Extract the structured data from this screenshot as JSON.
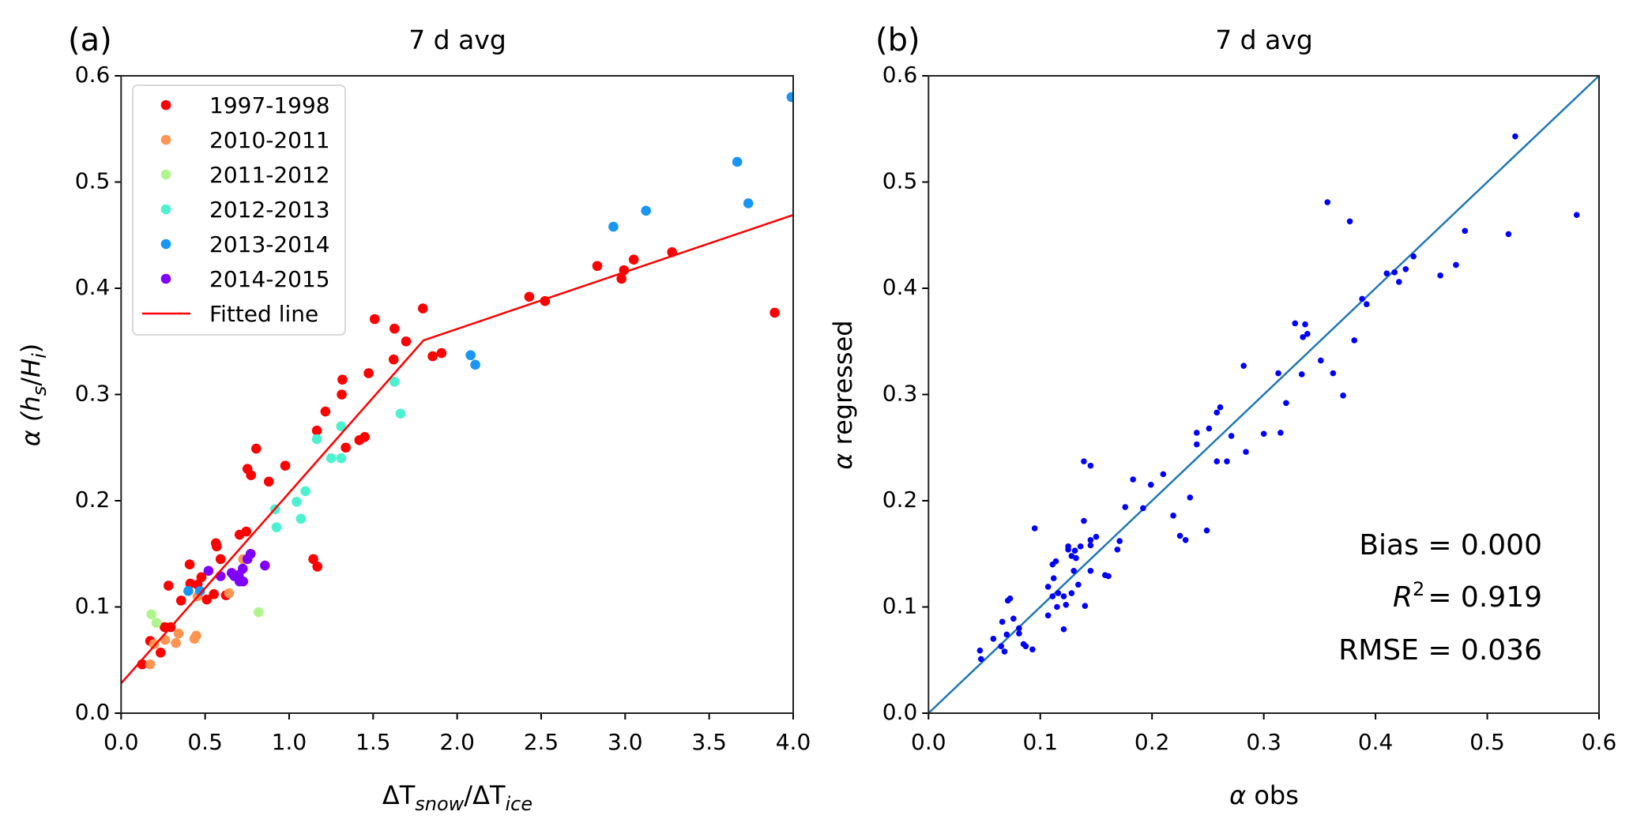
{
  "chart_data": [
    {
      "type": "scatter",
      "panel_label": "(a)",
      "title": "7 d avg",
      "xlabel_parts": [
        "ΔT",
        "snow",
        "/ΔT",
        "ice"
      ],
      "ylabel_parts": [
        "α (",
        "h",
        "s",
        "/",
        "H",
        "i",
        ")"
      ],
      "xlim": [
        0,
        4.0
      ],
      "ylim": [
        0,
        0.6
      ],
      "xticks": [
        "0.0",
        "0.5",
        "1.0",
        "1.5",
        "2.0",
        "2.5",
        "3.0",
        "3.5",
        "4.0"
      ],
      "yticks": [
        "0.0",
        "0.1",
        "0.2",
        "0.3",
        "0.4",
        "0.5",
        "0.6"
      ],
      "grid": false,
      "legend_position": "upper-left",
      "series": [
        {
          "name": "1997-1998",
          "color": "#ff0000",
          "points": [
            [
              0.804,
              0.249
            ],
            [
              0.752,
              0.23
            ],
            [
              0.773,
              0.224
            ],
            [
              0.977,
              0.233
            ],
            [
              0.879,
              0.218
            ],
            [
              0.705,
              0.168
            ],
            [
              0.745,
              0.171
            ],
            [
              0.564,
              0.16
            ],
            [
              0.569,
              0.157
            ],
            [
              0.592,
              0.145
            ],
            [
              0.408,
              0.14
            ],
            [
              0.478,
              0.128
            ],
            [
              0.412,
              0.122
            ],
            [
              0.455,
              0.121
            ],
            [
              0.282,
              0.12
            ],
            [
              0.357,
              0.106
            ],
            [
              0.51,
              0.107
            ],
            [
              0.552,
              0.112
            ],
            [
              0.624,
              0.111
            ],
            [
              1.144,
              0.145
            ],
            [
              1.168,
              0.138
            ],
            [
              0.259,
              0.081
            ],
            [
              0.295,
              0.081
            ],
            [
              0.173,
              0.068
            ],
            [
              0.235,
              0.057
            ],
            [
              0.125,
              0.046
            ],
            [
              1.165,
              0.266
            ],
            [
              1.216,
              0.284
            ],
            [
              1.509,
              0.371
            ],
            [
              1.796,
              0.381
            ],
            [
              1.627,
              0.362
            ],
            [
              1.696,
              0.35
            ],
            [
              1.622,
              0.333
            ],
            [
              1.473,
              0.32
            ],
            [
              1.317,
              0.314
            ],
            [
              1.313,
              0.3
            ],
            [
              1.854,
              0.336
            ],
            [
              1.907,
              0.339
            ],
            [
              1.418,
              0.257
            ],
            [
              1.45,
              0.26
            ],
            [
              1.337,
              0.25
            ],
            [
              2.429,
              0.392
            ],
            [
              2.523,
              0.388
            ],
            [
              2.834,
              0.421
            ],
            [
              2.993,
              0.417
            ],
            [
              2.978,
              0.409
            ],
            [
              3.051,
              0.427
            ],
            [
              3.279,
              0.434
            ],
            [
              3.89,
              0.377
            ]
          ]
        },
        {
          "name": "2010-2011",
          "color": "#ff9552",
          "points": [
            [
              0.173,
              0.046
            ],
            [
              0.196,
              0.065
            ],
            [
              0.262,
              0.069
            ],
            [
              0.326,
              0.066
            ],
            [
              0.342,
              0.075
            ],
            [
              0.436,
              0.07
            ],
            [
              0.447,
              0.073
            ],
            [
              0.455,
              0.11
            ],
            [
              0.643,
              0.113
            ],
            [
              0.726,
              0.145
            ]
          ]
        },
        {
          "name": "2011-2012",
          "color": "#b0f58c",
          "points": [
            [
              0.18,
              0.093
            ],
            [
              0.21,
              0.085
            ],
            [
              0.818,
              0.095
            ]
          ]
        },
        {
          "name": "2012-2013",
          "color": "#4cf2cf",
          "points": [
            [
              0.917,
              0.192
            ],
            [
              0.925,
              0.175
            ],
            [
              1.045,
              0.199
            ],
            [
              1.097,
              0.209
            ],
            [
              1.07,
              0.183
            ],
            [
              1.25,
              0.24
            ],
            [
              1.31,
              0.24
            ],
            [
              1.309,
              0.27
            ],
            [
              1.165,
              0.258
            ],
            [
              1.627,
              0.312
            ],
            [
              1.663,
              0.282
            ]
          ]
        },
        {
          "name": "2013-2014",
          "color": "#1996f3",
          "points": [
            [
              0.4,
              0.115
            ],
            [
              0.47,
              0.115
            ],
            [
              2.08,
              0.337
            ],
            [
              2.108,
              0.328
            ],
            [
              3.99,
              0.58
            ],
            [
              3.667,
              0.519
            ],
            [
              3.733,
              0.48
            ],
            [
              3.124,
              0.473
            ],
            [
              2.93,
              0.458
            ]
          ]
        },
        {
          "name": "2014-2015",
          "color": "#8000ff",
          "points": [
            [
              0.52,
              0.134
            ],
            [
              0.592,
              0.129
            ],
            [
              0.658,
              0.132
            ],
            [
              0.674,
              0.129
            ],
            [
              0.7,
              0.13
            ],
            [
              0.724,
              0.136
            ],
            [
              0.705,
              0.124
            ],
            [
              0.726,
              0.124
            ],
            [
              0.752,
              0.145
            ],
            [
              0.771,
              0.15
            ],
            [
              0.856,
              0.139
            ]
          ]
        }
      ],
      "fitted_line": {
        "name": "Fitted line",
        "color": "#ff0000",
        "points": [
          [
            0,
            0.028
          ],
          [
            1.8,
            0.351
          ],
          [
            4.0,
            0.469
          ]
        ]
      }
    },
    {
      "type": "scatter",
      "panel_label": "(b)",
      "title": "7 d avg",
      "xlabel_parts": [
        "α",
        " obs"
      ],
      "ylabel_parts": [
        "α",
        " regressed"
      ],
      "xlim": [
        0,
        0.6
      ],
      "ylim": [
        0,
        0.6
      ],
      "xticks": [
        "0.0",
        "0.1",
        "0.2",
        "0.3",
        "0.4",
        "0.5",
        "0.6"
      ],
      "yticks": [
        "0.0",
        "0.1",
        "0.2",
        "0.3",
        "0.4",
        "0.5",
        "0.6"
      ],
      "grid": false,
      "point_color": "#0000ff",
      "line_color": "#1f77b4",
      "one_to_one_line": [
        [
          0,
          0
        ],
        [
          0.6,
          0.6
        ]
      ],
      "points": [
        [
          0.139,
          0.237
        ],
        [
          0.145,
          0.233
        ],
        [
          0.21,
          0.225
        ],
        [
          0.183,
          0.22
        ],
        [
          0.199,
          0.215
        ],
        [
          0.176,
          0.194
        ],
        [
          0.192,
          0.193
        ],
        [
          0.139,
          0.181
        ],
        [
          0.095,
          0.174
        ],
        [
          0.15,
          0.166
        ],
        [
          0.145,
          0.163
        ],
        [
          0.145,
          0.158
        ],
        [
          0.171,
          0.162
        ],
        [
          0.169,
          0.154
        ],
        [
          0.136,
          0.157
        ],
        [
          0.125,
          0.157
        ],
        [
          0.125,
          0.154
        ],
        [
          0.131,
          0.153
        ],
        [
          0.128,
          0.148
        ],
        [
          0.132,
          0.146
        ],
        [
          0.114,
          0.143
        ],
        [
          0.111,
          0.14
        ],
        [
          0.13,
          0.134
        ],
        [
          0.145,
          0.134
        ],
        [
          0.158,
          0.13
        ],
        [
          0.161,
          0.129
        ],
        [
          0.112,
          0.127
        ],
        [
          0.107,
          0.119
        ],
        [
          0.134,
          0.121
        ],
        [
          0.116,
          0.113
        ],
        [
          0.111,
          0.11
        ],
        [
          0.121,
          0.11
        ],
        [
          0.128,
          0.113
        ],
        [
          0.115,
          0.1
        ],
        [
          0.123,
          0.102
        ],
        [
          0.14,
          0.101
        ],
        [
          0.107,
          0.092
        ],
        [
          0.121,
          0.079
        ],
        [
          0.071,
          0.106
        ],
        [
          0.073,
          0.108
        ],
        [
          0.076,
          0.089
        ],
        [
          0.066,
          0.086
        ],
        [
          0.081,
          0.08
        ],
        [
          0.081,
          0.075
        ],
        [
          0.07,
          0.074
        ],
        [
          0.058,
          0.07
        ],
        [
          0.085,
          0.065
        ],
        [
          0.087,
          0.063
        ],
        [
          0.065,
          0.063
        ],
        [
          0.068,
          0.058
        ],
        [
          0.093,
          0.06
        ],
        [
          0.046,
          0.059
        ],
        [
          0.047,
          0.051
        ],
        [
          0.328,
          0.367
        ],
        [
          0.337,
          0.366
        ],
        [
          0.339,
          0.357
        ],
        [
          0.335,
          0.354
        ],
        [
          0.381,
          0.351
        ],
        [
          0.351,
          0.332
        ],
        [
          0.362,
          0.32
        ],
        [
          0.313,
          0.32
        ],
        [
          0.334,
          0.319
        ],
        [
          0.371,
          0.299
        ],
        [
          0.282,
          0.327
        ],
        [
          0.32,
          0.292
        ],
        [
          0.261,
          0.288
        ],
        [
          0.258,
          0.283
        ],
        [
          0.251,
          0.268
        ],
        [
          0.24,
          0.264
        ],
        [
          0.24,
          0.253
        ],
        [
          0.271,
          0.261
        ],
        [
          0.3,
          0.263
        ],
        [
          0.315,
          0.264
        ],
        [
          0.284,
          0.246
        ],
        [
          0.258,
          0.237
        ],
        [
          0.267,
          0.237
        ],
        [
          0.234,
          0.203
        ],
        [
          0.219,
          0.186
        ],
        [
          0.249,
          0.172
        ],
        [
          0.225,
          0.167
        ],
        [
          0.23,
          0.163
        ],
        [
          0.525,
          0.543
        ],
        [
          0.377,
          0.463
        ],
        [
          0.58,
          0.469
        ],
        [
          0.48,
          0.454
        ],
        [
          0.519,
          0.451
        ],
        [
          0.434,
          0.43
        ],
        [
          0.427,
          0.418
        ],
        [
          0.417,
          0.415
        ],
        [
          0.41,
          0.414
        ],
        [
          0.421,
          0.406
        ],
        [
          0.472,
          0.422
        ],
        [
          0.458,
          0.412
        ],
        [
          0.388,
          0.39
        ],
        [
          0.392,
          0.385
        ],
        [
          0.357,
          0.481
        ]
      ],
      "stats": {
        "bias_label": "Bias = 0.000",
        "r2_parts": [
          "R",
          "2",
          "=  0.919"
        ],
        "rmse_label": "RMSE  =  0.036"
      }
    }
  ]
}
